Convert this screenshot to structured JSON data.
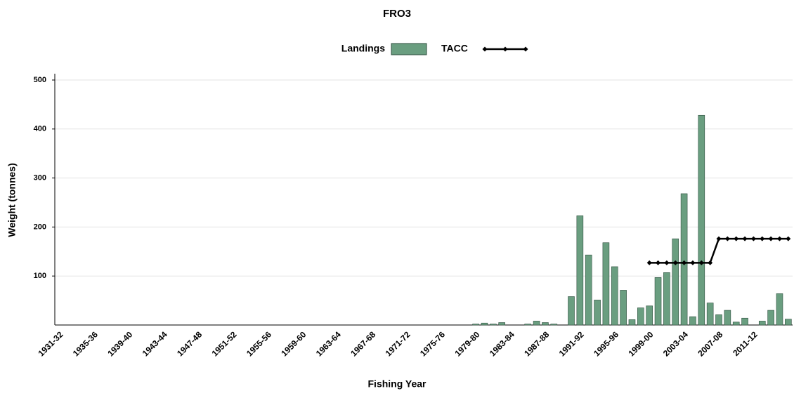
{
  "chart_data": {
    "type": "bar",
    "title": "FRO3",
    "x_label": "Fishing Year",
    "y_label": "Weight (tonnes)",
    "categories": [
      "1931-32",
      null,
      null,
      null,
      "1935-36",
      null,
      null,
      null,
      "1939-40",
      null,
      null,
      null,
      "1943-44",
      null,
      null,
      null,
      "1947-48",
      null,
      null,
      null,
      "1951-52",
      null,
      null,
      null,
      "1955-56",
      null,
      null,
      null,
      "1959-60",
      null,
      null,
      null,
      "1963-64",
      null,
      null,
      null,
      "1967-68",
      null,
      null,
      null,
      "1971-72",
      null,
      null,
      null,
      "1975-76",
      null,
      null,
      null,
      "1979-80",
      null,
      null,
      null,
      "1983-84",
      null,
      null,
      null,
      "1987-88",
      null,
      null,
      null,
      "1991-92",
      null,
      null,
      null,
      "1995-96",
      null,
      null,
      null,
      "1999-00",
      null,
      null,
      null,
      "2003-04",
      null,
      null,
      null,
      "2007-08",
      null,
      null,
      null,
      "2011-12",
      null,
      null,
      null,
      null
    ],
    "series": [
      {
        "name": "Landings",
        "type": "bar",
        "color": "#6a9e80",
        "values": [
          null,
          null,
          null,
          null,
          null,
          null,
          null,
          null,
          null,
          null,
          null,
          null,
          null,
          null,
          null,
          null,
          null,
          null,
          null,
          null,
          null,
          null,
          null,
          null,
          null,
          null,
          null,
          null,
          null,
          null,
          null,
          null,
          null,
          null,
          null,
          null,
          null,
          null,
          null,
          null,
          null,
          null,
          null,
          null,
          null,
          null,
          null,
          null,
          2,
          4,
          2,
          5,
          null,
          null,
          2,
          8,
          5,
          2,
          null,
          58,
          223,
          143,
          51,
          168,
          119,
          71,
          11,
          35,
          39,
          97,
          107,
          176,
          268,
          17,
          428,
          45,
          21,
          30,
          6,
          14,
          null,
          8,
          30,
          64,
          12
        ]
      },
      {
        "name": "TACC",
        "type": "line",
        "color": "#000000",
        "values": [
          null,
          null,
          null,
          null,
          null,
          null,
          null,
          null,
          null,
          null,
          null,
          null,
          null,
          null,
          null,
          null,
          null,
          null,
          null,
          null,
          null,
          null,
          null,
          null,
          null,
          null,
          null,
          null,
          null,
          null,
          null,
          null,
          null,
          null,
          null,
          null,
          null,
          null,
          null,
          null,
          null,
          null,
          null,
          null,
          null,
          null,
          null,
          null,
          null,
          null,
          null,
          null,
          null,
          null,
          null,
          null,
          null,
          null,
          null,
          null,
          null,
          null,
          null,
          null,
          null,
          null,
          null,
          null,
          127,
          127,
          127,
          127,
          127,
          127,
          127,
          127,
          176,
          176,
          176,
          176,
          176,
          176,
          176,
          176,
          176
        ]
      }
    ],
    "ylim": [
      0,
      500
    ],
    "yticks": [
      100,
      200,
      300,
      400,
      500
    ],
    "grid": true
  }
}
